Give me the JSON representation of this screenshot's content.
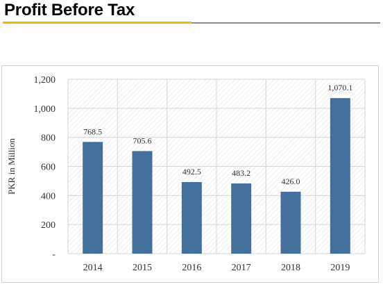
{
  "header": {
    "title": "Profit Before Tax"
  },
  "colors": {
    "accent_rule": "#f5b800",
    "grey_rule": "#8c8c8c",
    "bar": "#43709d",
    "grid": "#d6d6d6",
    "hatch": "#e6e6e6",
    "text": "#333333"
  },
  "chart_data": {
    "type": "bar",
    "title": "",
    "xlabel": "",
    "ylabel": "PKR in Million",
    "categories": [
      "2014",
      "2015",
      "2016",
      "2017",
      "2018",
      "2019"
    ],
    "values": [
      768.5,
      705.6,
      492.5,
      483.2,
      426.0,
      1070.1
    ],
    "value_labels": [
      "768.5",
      "705.6",
      "492.5",
      "483.2",
      "426.0",
      "1,070.1"
    ],
    "ylim": [
      0,
      1200
    ],
    "yticks": [
      0,
      200,
      400,
      600,
      800,
      1000,
      1200
    ],
    "ytick_labels": [
      "-",
      "200",
      "400",
      "600",
      "800",
      "1,000",
      "1,200"
    ],
    "grid": true,
    "legend": "none"
  }
}
